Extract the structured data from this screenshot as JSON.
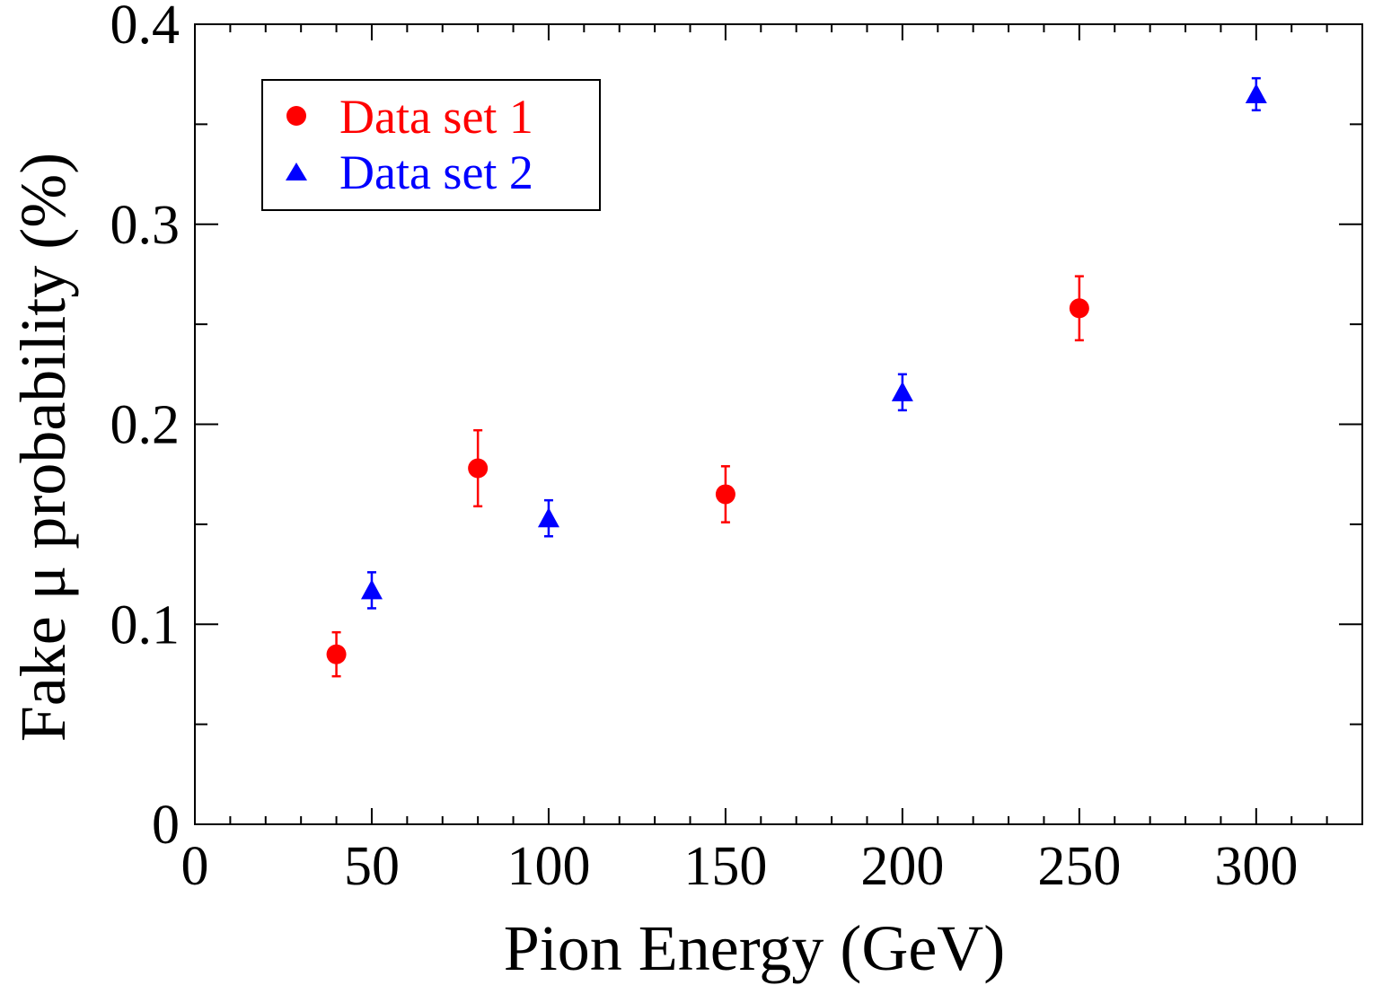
{
  "chart_data": {
    "type": "scatter",
    "xlabel": "Pion Energy (GeV)",
    "ylabel": "Fake μ probability (%)",
    "xlim": [
      0,
      330
    ],
    "ylim": [
      0,
      0.4
    ],
    "x_ticks": [
      0,
      50,
      100,
      150,
      200,
      250,
      300
    ],
    "x_tick_labels": [
      "0",
      "50",
      "100",
      "150",
      "200",
      "250",
      "300"
    ],
    "x_minor_step": 10,
    "y_ticks": [
      0,
      0.1,
      0.2,
      0.3,
      0.4
    ],
    "y_tick_labels": [
      "0",
      "0.1",
      "0.2",
      "0.3",
      "0.4"
    ],
    "y_minor_step": 0.05,
    "grid": false,
    "legend_position": "top-left",
    "series": [
      {
        "name": "Data set 1",
        "marker": "circle",
        "color": "#ff0000",
        "points": [
          {
            "x": 40,
            "y": 0.085,
            "err": 0.011
          },
          {
            "x": 80,
            "y": 0.178,
            "err": 0.019
          },
          {
            "x": 150,
            "y": 0.165,
            "err": 0.014
          },
          {
            "x": 250,
            "y": 0.258,
            "err": 0.016
          }
        ]
      },
      {
        "name": "Data set 2",
        "marker": "triangle",
        "color": "#0000ff",
        "points": [
          {
            "x": 50,
            "y": 0.117,
            "err": 0.009
          },
          {
            "x": 100,
            "y": 0.153,
            "err": 0.009
          },
          {
            "x": 200,
            "y": 0.216,
            "err": 0.009
          },
          {
            "x": 300,
            "y": 0.365,
            "err": 0.008
          }
        ]
      }
    ]
  }
}
